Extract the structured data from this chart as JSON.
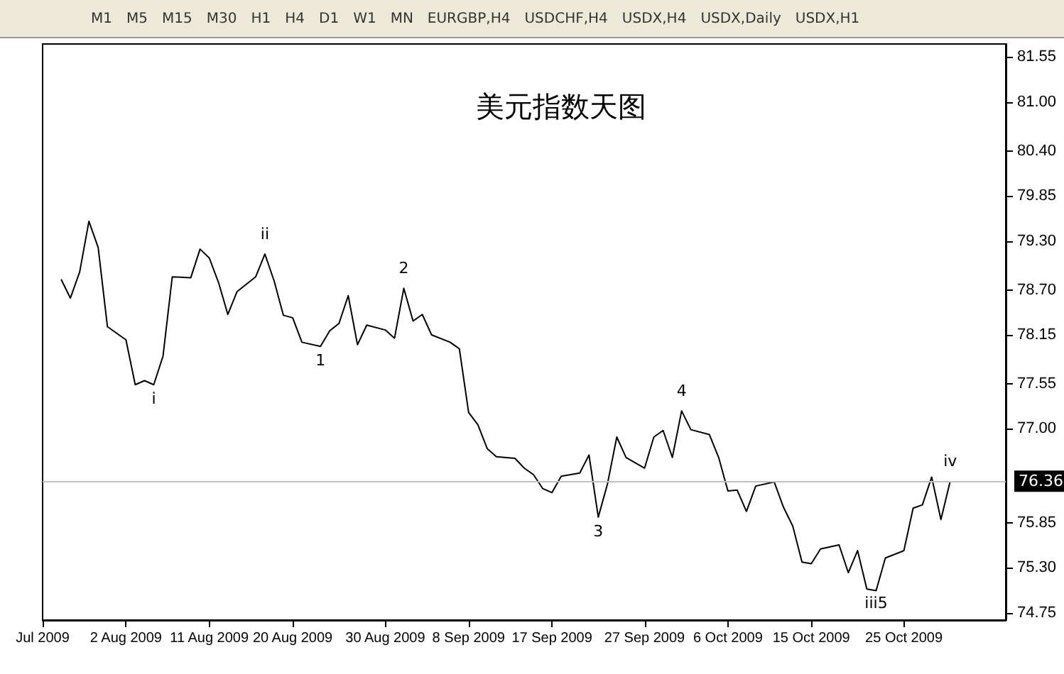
{
  "chart_data": {
    "type": "line",
    "title": "美元指数天图",
    "marker": "none",
    "grid": false,
    "line_style": "solid",
    "x": [
      "2009-07-26",
      "2009-07-27",
      "2009-07-28",
      "2009-07-29",
      "2009-07-30",
      "2009-07-31",
      "2009-08-02",
      "2009-08-03",
      "2009-08-04",
      "2009-08-05",
      "2009-08-06",
      "2009-08-07",
      "2009-08-09",
      "2009-08-10",
      "2009-08-11",
      "2009-08-12",
      "2009-08-13",
      "2009-08-14",
      "2009-08-16",
      "2009-08-17",
      "2009-08-18",
      "2009-08-19",
      "2009-08-20",
      "2009-08-21",
      "2009-08-23",
      "2009-08-24",
      "2009-08-25",
      "2009-08-26",
      "2009-08-27",
      "2009-08-28",
      "2009-08-30",
      "2009-08-31",
      "2009-09-01",
      "2009-09-02",
      "2009-09-03",
      "2009-09-04",
      "2009-09-06",
      "2009-09-07",
      "2009-09-08",
      "2009-09-09",
      "2009-09-10",
      "2009-09-11",
      "2009-09-13",
      "2009-09-14",
      "2009-09-15",
      "2009-09-16",
      "2009-09-17",
      "2009-09-18",
      "2009-09-20",
      "2009-09-21",
      "2009-09-22",
      "2009-09-23",
      "2009-09-24",
      "2009-09-25",
      "2009-09-27",
      "2009-09-28",
      "2009-09-29",
      "2009-09-30",
      "2009-10-01",
      "2009-10-02",
      "2009-10-04",
      "2009-10-05",
      "2009-10-06",
      "2009-10-07",
      "2009-10-08",
      "2009-10-09",
      "2009-10-11",
      "2009-10-12",
      "2009-10-13",
      "2009-10-14",
      "2009-10-15",
      "2009-10-16",
      "2009-10-18",
      "2009-10-19",
      "2009-10-20",
      "2009-10-21",
      "2009-10-22",
      "2009-10-23",
      "2009-10-25",
      "2009-10-26",
      "2009-10-27",
      "2009-10-28",
      "2009-10-29",
      "2009-10-30"
    ],
    "series": [
      {
        "color": "#000000",
        "values": [
          78.83,
          78.6,
          78.92,
          79.54,
          79.22,
          78.25,
          78.09,
          77.54,
          77.59,
          77.54,
          77.89,
          78.86,
          78.85,
          79.2,
          79.09,
          78.79,
          78.4,
          78.68,
          78.86,
          79.14,
          78.81,
          78.39,
          78.36,
          78.06,
          78.01,
          78.2,
          78.29,
          78.63,
          78.03,
          78.27,
          78.21,
          78.11,
          78.72,
          78.32,
          78.4,
          78.15,
          78.06,
          77.98,
          77.2,
          77.05,
          76.76,
          76.66,
          76.64,
          76.52,
          76.44,
          76.27,
          76.22,
          76.42,
          76.46,
          76.68,
          75.92,
          76.33,
          76.9,
          76.65,
          76.52,
          76.9,
          76.98,
          76.65,
          77.22,
          76.99,
          76.93,
          76.65,
          76.24,
          76.25,
          75.99,
          76.3,
          76.35,
          76.04,
          75.81,
          75.37,
          75.35,
          75.53,
          75.58,
          75.24,
          75.51,
          75.04,
          75.02,
          75.42,
          75.51,
          76.03,
          76.07,
          76.41,
          75.89,
          76.36
        ]
      }
    ],
    "xlim": [
      "2009-07-24",
      "2009-11-05"
    ],
    "xticks": [
      {
        "value": "2009-07-24",
        "label": "Jul 2009"
      },
      {
        "value": "2009-08-02",
        "label": "2 Aug 2009"
      },
      {
        "value": "2009-08-11",
        "label": "11 Aug 2009"
      },
      {
        "value": "2009-08-20",
        "label": "20 Aug 2009"
      },
      {
        "value": "2009-08-30",
        "label": "30 Aug 2009"
      },
      {
        "value": "2009-09-08",
        "label": "8 Sep 2009"
      },
      {
        "value": "2009-09-17",
        "label": "17 Sep 2009"
      },
      {
        "value": "2009-09-27",
        "label": "27 Sep 2009"
      },
      {
        "value": "2009-10-06",
        "label": "6 Oct 2009"
      },
      {
        "value": "2009-10-15",
        "label": "15 Oct 2009"
      },
      {
        "value": "2009-10-25",
        "label": "25 Oct 2009"
      }
    ],
    "ylim": [
      74.66,
      81.71
    ],
    "yticks": [
      {
        "value": 74.75,
        "label": "74.75"
      },
      {
        "value": 75.3,
        "label": "75.30"
      },
      {
        "value": 75.85,
        "label": "75.85"
      },
      {
        "value": 77,
        "label": "77.00"
      },
      {
        "value": 77.55,
        "label": "77.55"
      },
      {
        "value": 78.15,
        "label": "78.15"
      },
      {
        "value": 78.7,
        "label": "78.70"
      },
      {
        "value": 79.3,
        "label": "79.30"
      },
      {
        "value": 79.85,
        "label": "79.85"
      },
      {
        "value": 80.4,
        "label": "80.40"
      },
      {
        "value": 81,
        "label": "81.00"
      },
      {
        "value": 81.55,
        "label": "81.55"
      }
    ],
    "ref_lines": [
      {
        "axis": "y",
        "value": 76.36,
        "label": "76.36",
        "color": "#c0c0c0"
      }
    ],
    "annotations": [
      "M1",
      "M5",
      "M15",
      "M30",
      "H1",
      "H4",
      "D1",
      "W1",
      "MN",
      "EURGBP,H4",
      "USDCHF,H4",
      "USDX,H4",
      "USDX,Daily",
      "USDX,H1",
      {
        "text": "i",
        "x": "2009-08-05",
        "y": 77.54
      },
      {
        "text": "ii",
        "x": "2009-08-17",
        "y": 79.14
      },
      {
        "text": "1",
        "x": "2009-08-23",
        "y": 78.01
      },
      {
        "text": "2",
        "x": "2009-09-01",
        "y": 78.72
      },
      {
        "text": "3",
        "x": "2009-09-22",
        "y": 75.92
      },
      {
        "text": "4",
        "x": "2009-10-01",
        "y": 77.22
      },
      {
        "text": "iii5",
        "x": "2009-10-22",
        "y": 75.04
      },
      {
        "text": "iv",
        "x": "2009-10-30",
        "y": 76.36
      }
    ]
  }
}
